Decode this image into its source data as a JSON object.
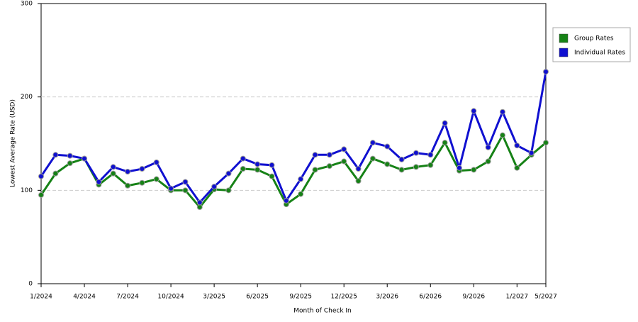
{
  "chart_data": {
    "type": "line",
    "x_label": "Month of Check In",
    "y_label": "Lowest Average Rate (USD)",
    "categories": [
      "1/2024",
      null,
      null,
      "4/2024",
      null,
      null,
      "7/2024",
      null,
      null,
      "10/2024",
      null,
      null,
      "3/2025",
      null,
      null,
      "6/2025",
      null,
      null,
      "9/2025",
      null,
      null,
      "12/2025",
      null,
      null,
      "3/2026",
      null,
      null,
      "6/2026",
      null,
      null,
      "9/2026",
      null,
      null,
      "1/2027",
      null,
      "5/2027"
    ],
    "series": [
      {
        "name": "Group Rates",
        "color": "#168216",
        "values": [
          95,
          118,
          129,
          134,
          106,
          118,
          105,
          108,
          112,
          100,
          100,
          82,
          101,
          100,
          123,
          122,
          115,
          85,
          96,
          122,
          126,
          131,
          110,
          134,
          128,
          122,
          125,
          127,
          151,
          121,
          122,
          131,
          159,
          124,
          138,
          151
        ]
      },
      {
        "name": "Individual Rates",
        "color": "#1010d0",
        "values": [
          115,
          138,
          137,
          134,
          109,
          125,
          120,
          123,
          130,
          102,
          109,
          87,
          104,
          118,
          134,
          128,
          127,
          89,
          112,
          138,
          138,
          144,
          123,
          151,
          147,
          133,
          140,
          138,
          172,
          124,
          185,
          146,
          184,
          148,
          140,
          227
        ]
      }
    ],
    "ylim": [
      0,
      300
    ],
    "yticks": [
      0,
      100,
      200,
      300
    ],
    "grid": true,
    "legend": "right"
  }
}
